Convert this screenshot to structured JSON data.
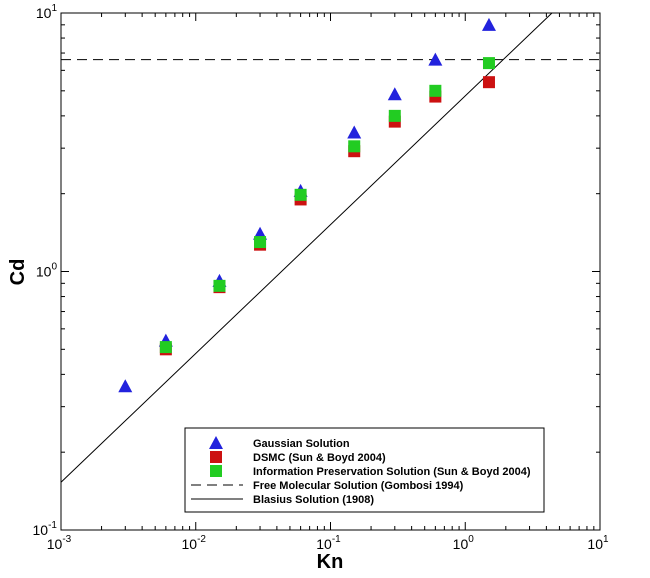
{
  "chart_data": {
    "type": "scatter",
    "x_scale": "log",
    "y_scale": "log",
    "xlabel": "Kn",
    "ylabel": "Cd",
    "xlim": [
      0.001,
      10
    ],
    "ylim": [
      0.1,
      10
    ],
    "x_tick_labels": [
      {
        "base": "10",
        "exp": "-3"
      },
      {
        "base": "10",
        "exp": "-2"
      },
      {
        "base": "10",
        "exp": "-1"
      },
      {
        "base": "10",
        "exp": "0"
      },
      {
        "base": "10",
        "exp": "1"
      }
    ],
    "y_tick_labels": [
      {
        "base": "10",
        "exp": "-1"
      },
      {
        "base": "10",
        "exp": "0"
      },
      {
        "base": "10",
        "exp": "1"
      }
    ],
    "grid": false,
    "legend_position": "bottom-center",
    "series": [
      {
        "name": "Gaussian Solution",
        "marker": "triangle",
        "color": "#2222dd",
        "x": [
          0.003,
          0.006,
          0.015,
          0.03,
          0.06,
          0.15,
          0.3,
          0.6,
          1.5
        ],
        "y": [
          0.36,
          0.54,
          0.92,
          1.4,
          2.05,
          3.45,
          4.85,
          6.6,
          9.0
        ]
      },
      {
        "name": "DSMC (Sun & Boyd 2004)",
        "marker": "square",
        "color": "#cc1111",
        "x": [
          0.006,
          0.015,
          0.03,
          0.06,
          0.15,
          0.3,
          0.6,
          1.5
        ],
        "y": [
          0.5,
          0.87,
          1.27,
          1.9,
          2.92,
          3.8,
          4.75,
          5.4
        ]
      },
      {
        "name": "Information Preservation Solution (Sun & Boyd 2004)",
        "marker": "square",
        "color": "#22cc22",
        "x": [
          0.006,
          0.015,
          0.03,
          0.06,
          0.15,
          0.3,
          0.6,
          1.5
        ],
        "y": [
          0.51,
          0.88,
          1.3,
          1.98,
          3.05,
          4.0,
          5.0,
          6.4
        ]
      },
      {
        "name": "Free Molecular Solution  (Gombosi 1994)",
        "line": "dashed",
        "color": "#000000",
        "x": [
          0.001,
          10
        ],
        "y": [
          6.6,
          6.6
        ]
      },
      {
        "name": "Blasius Solution (1908)",
        "line": "solid",
        "color": "#000000",
        "x": [
          0.001,
          4.4
        ],
        "y": [
          0.153,
          10
        ]
      }
    ]
  }
}
